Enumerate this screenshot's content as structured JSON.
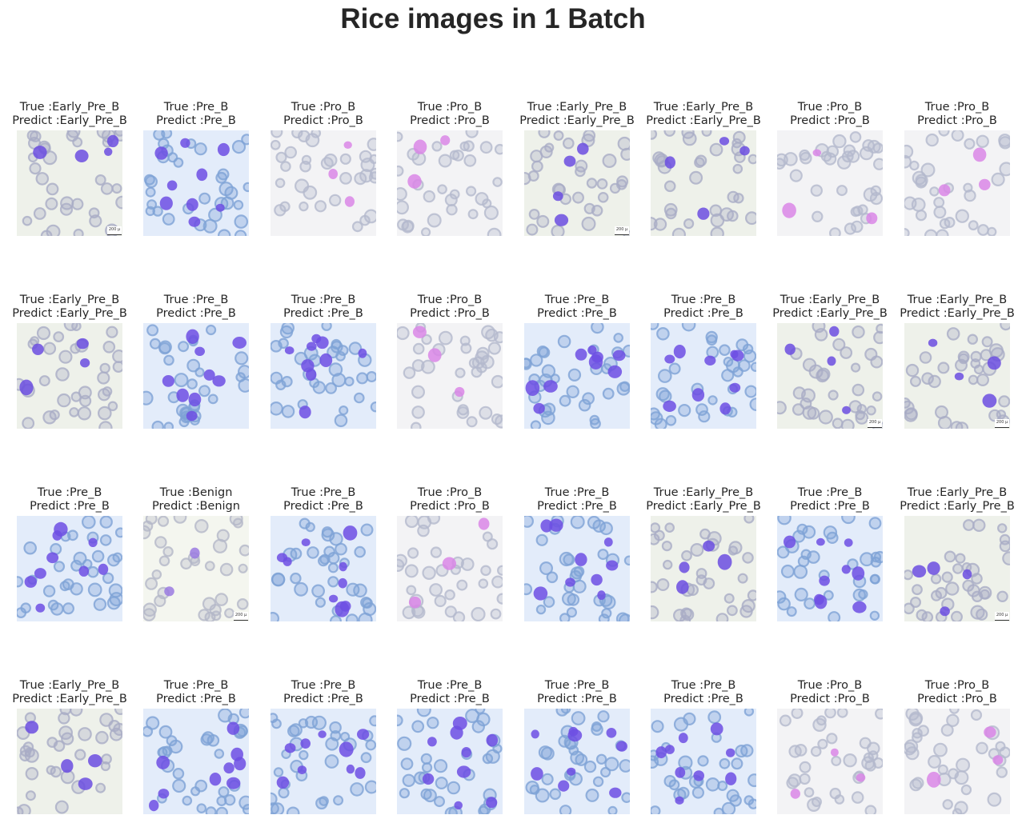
{
  "figure": {
    "title": "Rice images in 1 Batch"
  },
  "palettes": {
    "Early_Pre_B": {
      "bg": "#eef1ea",
      "rbc": "#a9adc6",
      "blast": "#6b4ee0"
    },
    "Pre_B": {
      "bg": "#e3ecfa",
      "rbc": "#7ea3d6",
      "blast": "#6d4fe3"
    },
    "Pro_B": {
      "bg": "#f3f3f5",
      "rbc": "#b4b9cd",
      "blast": "#d986e6"
    },
    "Benign": {
      "bg": "#f4f6ef",
      "rbc": "#b4b8c8",
      "blast": "#9a7ae0"
    }
  },
  "panels": [
    {
      "true_text": "True :Early_Pre_B",
      "predict_text": "Predict :Early_Pre_B",
      "class": "Early_Pre_B",
      "scale_bar": "200 µ"
    },
    {
      "true_text": "True :Pre_B",
      "predict_text": "Predict :Pre_B",
      "class": "Pre_B",
      "scale_bar": ""
    },
    {
      "true_text": "True :Pro_B",
      "predict_text": "Predict :Pro_B",
      "class": "Pro_B",
      "scale_bar": ""
    },
    {
      "true_text": "True :Pro_B",
      "predict_text": "Predict :Pro_B",
      "class": "Pro_B",
      "scale_bar": ""
    },
    {
      "true_text": "True :Early_Pre_B",
      "predict_text": "Predict :Early_Pre_B",
      "class": "Early_Pre_B",
      "scale_bar": "200 µ"
    },
    {
      "true_text": "True :Early_Pre_B",
      "predict_text": "Predict :Early_Pre_B",
      "class": "Early_Pre_B",
      "scale_bar": ""
    },
    {
      "true_text": "True :Pro_B",
      "predict_text": "Predict :Pro_B",
      "class": "Pro_B",
      "scale_bar": ""
    },
    {
      "true_text": "True :Pro_B",
      "predict_text": "Predict :Pro_B",
      "class": "Pro_B",
      "scale_bar": ""
    },
    {
      "true_text": "True :Early_Pre_B",
      "predict_text": "Predict :Early_Pre_B",
      "class": "Early_Pre_B",
      "scale_bar": ""
    },
    {
      "true_text": "True :Pre_B",
      "predict_text": "Predict :Pre_B",
      "class": "Pre_B",
      "scale_bar": ""
    },
    {
      "true_text": "True :Pre_B",
      "predict_text": "Predict :Pre_B",
      "class": "Pre_B",
      "scale_bar": ""
    },
    {
      "true_text": "True :Pro_B",
      "predict_text": "Predict :Pro_B",
      "class": "Pro_B",
      "scale_bar": ""
    },
    {
      "true_text": "True :Pre_B",
      "predict_text": "Predict :Pre_B",
      "class": "Pre_B",
      "scale_bar": ""
    },
    {
      "true_text": "True :Pre_B",
      "predict_text": "Predict :Pre_B",
      "class": "Pre_B",
      "scale_bar": ""
    },
    {
      "true_text": "True :Early_Pre_B",
      "predict_text": "Predict :Early_Pre_B",
      "class": "Early_Pre_B",
      "scale_bar": "200 µ"
    },
    {
      "true_text": "True :Early_Pre_B",
      "predict_text": "Predict :Early_Pre_B",
      "class": "Early_Pre_B",
      "scale_bar": "200 µ"
    },
    {
      "true_text": "True :Pre_B",
      "predict_text": "Predict :Pre_B",
      "class": "Pre_B",
      "scale_bar": ""
    },
    {
      "true_text": "True :Benign",
      "predict_text": "Predict :Benign",
      "class": "Benign",
      "scale_bar": "200 µ"
    },
    {
      "true_text": "True :Pre_B",
      "predict_text": "Predict :Pre_B",
      "class": "Pre_B",
      "scale_bar": ""
    },
    {
      "true_text": "True :Pro_B",
      "predict_text": "Predict :Pro_B",
      "class": "Pro_B",
      "scale_bar": ""
    },
    {
      "true_text": "True :Pre_B",
      "predict_text": "Predict :Pre_B",
      "class": "Pre_B",
      "scale_bar": ""
    },
    {
      "true_text": "True :Early_Pre_B",
      "predict_text": "Predict :Early_Pre_B",
      "class": "Early_Pre_B",
      "scale_bar": ""
    },
    {
      "true_text": "True :Pre_B",
      "predict_text": "Predict :Pre_B",
      "class": "Pre_B",
      "scale_bar": ""
    },
    {
      "true_text": "True :Early_Pre_B",
      "predict_text": "Predict :Early_Pre_B",
      "class": "Early_Pre_B",
      "scale_bar": "200 µ"
    },
    {
      "true_text": "True :Early_Pre_B",
      "predict_text": "Predict :Early_Pre_B",
      "class": "Early_Pre_B",
      "scale_bar": ""
    },
    {
      "true_text": "True :Pre_B",
      "predict_text": "Predict :Pre_B",
      "class": "Pre_B",
      "scale_bar": ""
    },
    {
      "true_text": "True :Pre_B",
      "predict_text": "Predict :Pre_B",
      "class": "Pre_B",
      "scale_bar": ""
    },
    {
      "true_text": "True :Pre_B",
      "predict_text": "Predict :Pre_B",
      "class": "Pre_B",
      "scale_bar": ""
    },
    {
      "true_text": "True :Pre_B",
      "predict_text": "Predict :Pre_B",
      "class": "Pre_B",
      "scale_bar": ""
    },
    {
      "true_text": "True :Pre_B",
      "predict_text": "Predict :Pre_B",
      "class": "Pre_B",
      "scale_bar": ""
    },
    {
      "true_text": "True :Pro_B",
      "predict_text": "Predict :Pro_B",
      "class": "Pro_B",
      "scale_bar": ""
    },
    {
      "true_text": "True :Pro_B",
      "predict_text": "Predict :Pro_B",
      "class": "Pro_B",
      "scale_bar": ""
    }
  ]
}
